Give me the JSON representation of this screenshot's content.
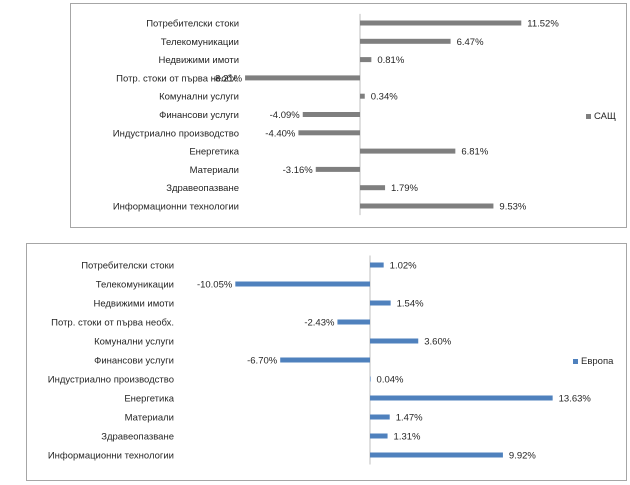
{
  "chart_data": [
    {
      "type": "bar",
      "orientation": "horizontal",
      "categories": [
        "Потребителски стоки",
        "Телекомуникации",
        "Недвижими имоти",
        "Потр. стоки от първа необх.",
        "Комунални услуги",
        "Финансови услуги",
        "Индустриално производство",
        "Енергетика",
        "Материали",
        "Здравеопазване",
        "Информационни технологии"
      ],
      "series": [
        {
          "name": "САЩ",
          "color": "#7f7f7f",
          "values": [
            11.52,
            6.47,
            0.81,
            -8.21,
            0.34,
            -4.09,
            -4.4,
            6.81,
            -3.16,
            1.79,
            9.53
          ]
        }
      ],
      "value_labels": [
        "11.52%",
        "6.47%",
        "0.81%",
        "-8.21%",
        "0.34%",
        "-4.09%",
        "-4.40%",
        "6.81%",
        "-3.16%",
        "1.79%",
        "9.53%"
      ],
      "xlim": [
        -8.5,
        12
      ],
      "grid": false,
      "legend": "right"
    },
    {
      "type": "bar",
      "orientation": "horizontal",
      "categories": [
        "Потребителски стоки",
        "Телекомуникации",
        "Недвижими имоти",
        "Потр. стоки от първа необх.",
        "Комунални услуги",
        "Финансови услуги",
        "Индустриално производство",
        "Енергетика",
        "Материали",
        "Здравеопазване",
        "Информационни технологии"
      ],
      "series": [
        {
          "name": "Европа",
          "color": "#4f81bd",
          "values": [
            1.02,
            -10.05,
            1.54,
            -2.43,
            3.6,
            -6.7,
            0.04,
            13.63,
            1.47,
            1.31,
            9.92
          ]
        }
      ],
      "value_labels": [
        "1.02%",
        "-10.05%",
        "1.54%",
        "-2.43%",
        "3.60%",
        "-6.70%",
        "0.04%",
        "13.63%",
        "1.47%",
        "1.31%",
        "9.92%"
      ],
      "xlim": [
        -10.5,
        14
      ],
      "grid": false,
      "legend": "right"
    }
  ]
}
